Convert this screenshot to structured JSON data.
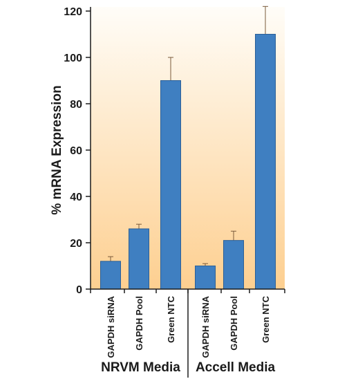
{
  "chart_data": {
    "type": "bar",
    "ylabel": "% mRNA Expression",
    "ylim": [
      0,
      120
    ],
    "yticks": [
      "0",
      "20",
      "40",
      "60",
      "80",
      "100",
      "120"
    ],
    "yticks_values": [
      0,
      20,
      40,
      60,
      80,
      100,
      120
    ],
    "groups": [
      {
        "name": "NRVM Media",
        "categories": [
          "GAPDH siRNA",
          "GAPDH Pool",
          "Green NTC"
        ],
        "values": [
          12,
          26,
          90
        ],
        "errors": [
          2,
          2,
          10
        ]
      },
      {
        "name": "Accell Media",
        "categories": [
          "GAPDH siRNA",
          "GAPDH Pool",
          "Green NTC"
        ],
        "values": [
          10,
          21,
          110
        ],
        "errors": [
          1,
          4,
          12
        ]
      }
    ],
    "colors": {
      "bar": "#3f7fc1",
      "bar_edge": "#2b5f97",
      "bg_top": "#fffdf8",
      "bg_bottom": "#fdcf90",
      "axis": "#1a1a1a"
    },
    "grid": false,
    "legend": "none"
  }
}
